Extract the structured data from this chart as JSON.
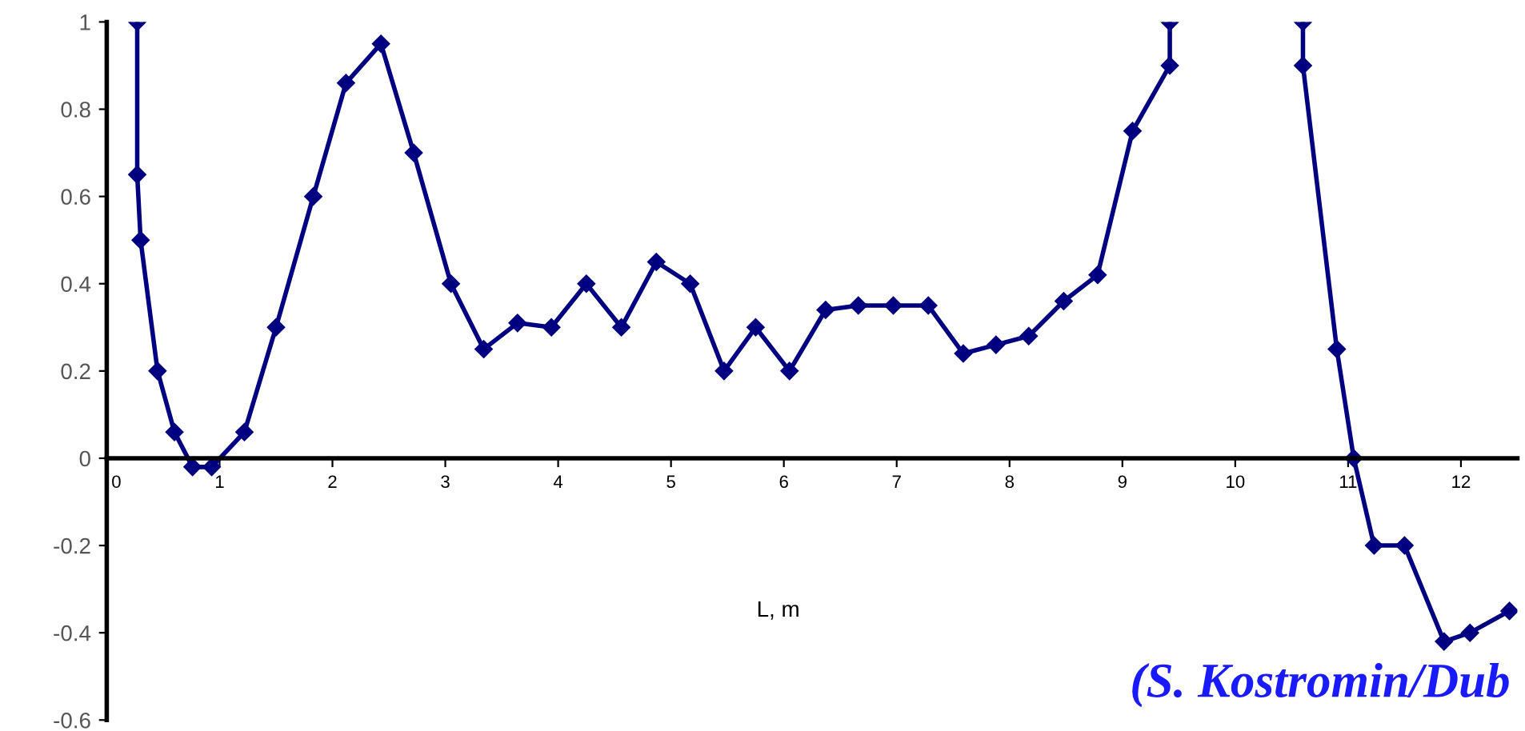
{
  "chart_data": {
    "type": "line",
    "xlabel": "L, m",
    "annotations": [
      "(S. Kostromin/Dub"
    ],
    "series": [
      {
        "color": "#000080",
        "x": [
          0.27,
          0.27,
          0.3,
          0.45,
          0.6,
          0.76,
          0.93,
          1.22,
          1.5,
          1.83,
          2.12,
          2.43,
          2.72,
          3.05,
          3.34,
          3.64,
          3.94,
          4.25,
          4.56,
          4.87,
          5.17,
          5.47,
          5.75,
          6.05,
          6.37,
          6.66,
          6.97,
          7.28,
          7.59,
          7.88,
          8.17,
          8.48,
          8.78,
          9.09,
          9.42,
          9.42,
          10.0,
          10.6,
          10.6,
          10.9,
          11.05,
          11.23,
          11.5,
          11.85,
          12.08,
          12.43
        ],
        "values": [
          1,
          0.65,
          0.5,
          0.2,
          0.06,
          -0.02,
          -0.02,
          0.06,
          0.3,
          0.6,
          0.86,
          0.95,
          0.7,
          0.4,
          0.25,
          0.31,
          0.3,
          0.4,
          0.3,
          0.45,
          0.4,
          0.2,
          0.3,
          0.2,
          0.34,
          0.35,
          0.35,
          0.35,
          0.24,
          0.26,
          0.28,
          0.36,
          0.42,
          0.75,
          0.9,
          1,
          null,
          1,
          0.9,
          0.25,
          0,
          -0.2,
          -0.2,
          -0.42,
          -0.4,
          -0.35
        ]
      }
    ],
    "xlim": [
      0,
      12.5
    ],
    "ylim": [
      -0.6,
      1
    ],
    "xticks": [
      0,
      1,
      2,
      3,
      4,
      5,
      6,
      7,
      8,
      9,
      10,
      11,
      12
    ],
    "yticks": [
      -0.6,
      -0.4,
      -0.2,
      0,
      0.2,
      0.4,
      0.6,
      0.8,
      1
    ],
    "marker": "diamond",
    "line_style": "solid",
    "grid": false,
    "legend": false
  }
}
